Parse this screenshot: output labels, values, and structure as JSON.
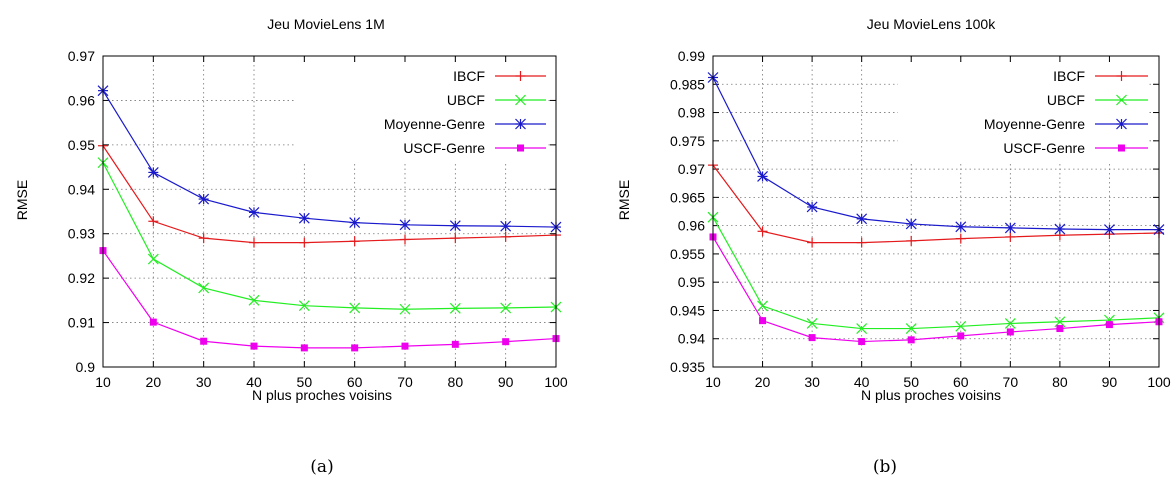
{
  "chart_data": [
    {
      "type": "line",
      "title": "Jeu MovieLens 1M",
      "xlabel": "N plus proches voisins",
      "ylabel": "RMSE",
      "caption": "(a)",
      "x": [
        10,
        20,
        30,
        40,
        50,
        60,
        70,
        80,
        90,
        100
      ],
      "xlim": [
        10,
        100
      ],
      "ylim": [
        0.9,
        0.97
      ],
      "xticks": [
        "10",
        "20",
        "30",
        "40",
        "50",
        "60",
        "70",
        "80",
        "90",
        "100"
      ],
      "yticks": [
        "0.9",
        "0.91",
        "0.92",
        "0.93",
        "0.94",
        "0.95",
        "0.96",
        "0.97"
      ],
      "yticks_values": [
        0.9,
        0.91,
        0.92,
        0.93,
        0.94,
        0.95,
        0.96,
        0.97
      ],
      "grid": true,
      "legend_position": "top-right",
      "series": [
        {
          "name": "IBCF",
          "color": "#e41a1c",
          "marker": "plus",
          "values": [
            0.9498,
            0.9328,
            0.929,
            0.928,
            0.928,
            0.9283,
            0.9287,
            0.929,
            0.9293,
            0.9297
          ]
        },
        {
          "name": "UBCF",
          "color": "#22ee22",
          "marker": "cross",
          "values": [
            0.946,
            0.9243,
            0.9178,
            0.915,
            0.9138,
            0.9133,
            0.913,
            0.9132,
            0.9133,
            0.9135
          ]
        },
        {
          "name": "Moyenne-Genre",
          "color": "#1a1acc",
          "marker": "star",
          "values": [
            0.9622,
            0.9438,
            0.9378,
            0.9348,
            0.9335,
            0.9325,
            0.932,
            0.9318,
            0.9317,
            0.9315
          ]
        },
        {
          "name": "USCF-Genre",
          "color": "#ee00ee",
          "marker": "square",
          "values": [
            0.9262,
            0.9101,
            0.9058,
            0.9047,
            0.9043,
            0.9043,
            0.9047,
            0.9051,
            0.9057,
            0.9064
          ]
        }
      ]
    },
    {
      "type": "line",
      "title": "Jeu MovieLens 100k",
      "xlabel": "N plus proches voisins",
      "ylabel": "RMSE",
      "caption": "(b)",
      "x": [
        10,
        20,
        30,
        40,
        50,
        60,
        70,
        80,
        90,
        100
      ],
      "xlim": [
        10,
        100
      ],
      "ylim": [
        0.935,
        0.99
      ],
      "xticks": [
        "10",
        "20",
        "30",
        "40",
        "50",
        "60",
        "70",
        "80",
        "90",
        "100"
      ],
      "yticks": [
        "0.935",
        "0.94",
        "0.945",
        "0.95",
        "0.955",
        "0.96",
        "0.965",
        "0.97",
        "0.975",
        "0.98",
        "0.985",
        "0.99"
      ],
      "yticks_values": [
        0.935,
        0.94,
        0.945,
        0.95,
        0.955,
        0.96,
        0.965,
        0.97,
        0.975,
        0.98,
        0.985,
        0.99
      ],
      "grid": true,
      "legend_position": "top-right",
      "series": [
        {
          "name": "IBCF",
          "color": "#e41a1c",
          "marker": "plus",
          "values": [
            0.9707,
            0.959,
            0.957,
            0.957,
            0.9573,
            0.9577,
            0.958,
            0.9583,
            0.9585,
            0.9587
          ]
        },
        {
          "name": "UBCF",
          "color": "#22ee22",
          "marker": "cross",
          "values": [
            0.9615,
            0.9458,
            0.9427,
            0.9418,
            0.9418,
            0.9422,
            0.9427,
            0.943,
            0.9433,
            0.9437
          ]
        },
        {
          "name": "Moyenne-Genre",
          "color": "#1a1acc",
          "marker": "star",
          "values": [
            0.9862,
            0.9687,
            0.9633,
            0.9612,
            0.9603,
            0.9598,
            0.9596,
            0.9594,
            0.9593,
            0.9593
          ]
        },
        {
          "name": "USCF-Genre",
          "color": "#ee00ee",
          "marker": "square",
          "values": [
            0.958,
            0.9432,
            0.9402,
            0.9395,
            0.9398,
            0.9405,
            0.9412,
            0.9418,
            0.9425,
            0.943
          ]
        }
      ]
    }
  ]
}
